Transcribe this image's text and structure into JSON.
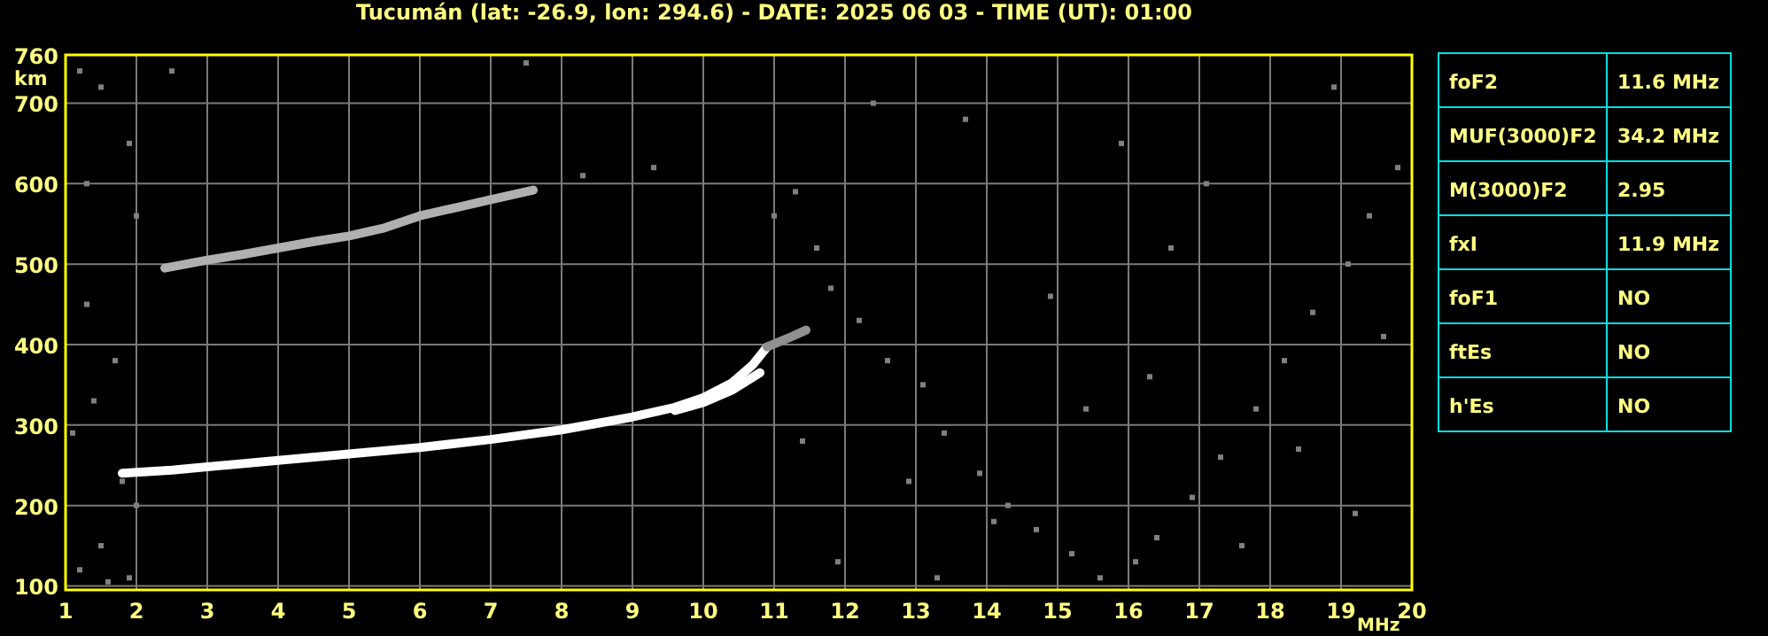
{
  "chart_data": [
    {
      "type": "line",
      "title": "Tucumán (lat: -26.9, lon: 294.6) - DATE: 2025 06 03 - TIME (UT): 01:00",
      "xlabel": "MHz",
      "ylabel": "km",
      "xlim": [
        1,
        20
      ],
      "xticks": [
        1,
        2,
        3,
        4,
        5,
        6,
        7,
        8,
        9,
        10,
        11,
        12,
        13,
        14,
        15,
        16,
        17,
        18,
        19,
        20
      ],
      "ylim": [
        95,
        760
      ],
      "yticks": [
        100,
        200,
        300,
        400,
        500,
        600,
        700,
        760
      ],
      "grid": true,
      "series": [
        {
          "color": "#ffffff",
          "x": [
            1.8,
            2.5,
            3,
            4,
            5,
            6,
            7,
            8,
            9,
            9.6,
            10,
            10.4,
            10.7,
            10.9
          ],
          "values": [
            240,
            244,
            248,
            256,
            264,
            272,
            282,
            294,
            310,
            322,
            334,
            352,
            375,
            397
          ]
        },
        {
          "color": "#ffffff",
          "x": [
            9.6,
            10,
            10.4,
            10.8
          ],
          "values": [
            318,
            328,
            343,
            365
          ]
        },
        {
          "color": "#909090",
          "x": [
            10.9,
            11.2,
            11.45
          ],
          "values": [
            397,
            408,
            418
          ]
        },
        {
          "color": "#b0b0b0",
          "x": [
            2.4,
            3,
            3.5,
            4,
            4.5,
            5,
            5.5,
            6,
            6.5,
            7,
            7.6
          ],
          "values": [
            495,
            505,
            512,
            520,
            528,
            535,
            545,
            560,
            570,
            580,
            592
          ]
        },
        {
          "type": "scatter",
          "marker": "square",
          "color": "#808080",
          "x": [
            1.2,
            1.5,
            1.9,
            2.0,
            1.3,
            1.7,
            1.4,
            1.1,
            1.8,
            2.0,
            1.5,
            1.2,
            1.6,
            1.9,
            1.3,
            2.5,
            7.5,
            8.3,
            9.3,
            11.0,
            11.3,
            11.6,
            11.8,
            12.2,
            12.6,
            13.1,
            13.4,
            13.9,
            14.3,
            14.7,
            15.2,
            15.6,
            16.1,
            16.4,
            16.9,
            17.3,
            17.8,
            18.2,
            18.6,
            19.1,
            19.4,
            19.8,
            12.4,
            13.7,
            15.9,
            17.1,
            18.9,
            14.9,
            16.6,
            19.6,
            11.4,
            12.9,
            14.1,
            17.6,
            19.2,
            13.3,
            15.4,
            18.4,
            11.9,
            16.3
          ],
          "values": [
            740,
            720,
            650,
            560,
            450,
            380,
            330,
            290,
            230,
            200,
            150,
            120,
            105,
            110,
            600,
            740,
            750,
            610,
            620,
            560,
            590,
            520,
            470,
            430,
            380,
            350,
            290,
            240,
            200,
            170,
            140,
            110,
            130,
            160,
            210,
            260,
            320,
            380,
            440,
            500,
            560,
            620,
            700,
            680,
            650,
            600,
            720,
            460,
            520,
            410,
            280,
            230,
            180,
            150,
            190,
            110,
            320,
            270,
            130,
            360
          ]
        }
      ]
    },
    {
      "type": "other",
      "categories": [
        "foF2",
        "MUF(3000)F2",
        "M(3000)F2",
        "fxI",
        "foF1",
        "ftEs",
        "h'Es"
      ],
      "value_labels": [
        "11.6 MHz",
        "34.2 MHz",
        "2.95",
        "11.9 MHz",
        "NO",
        "NO",
        "NO"
      ]
    }
  ]
}
